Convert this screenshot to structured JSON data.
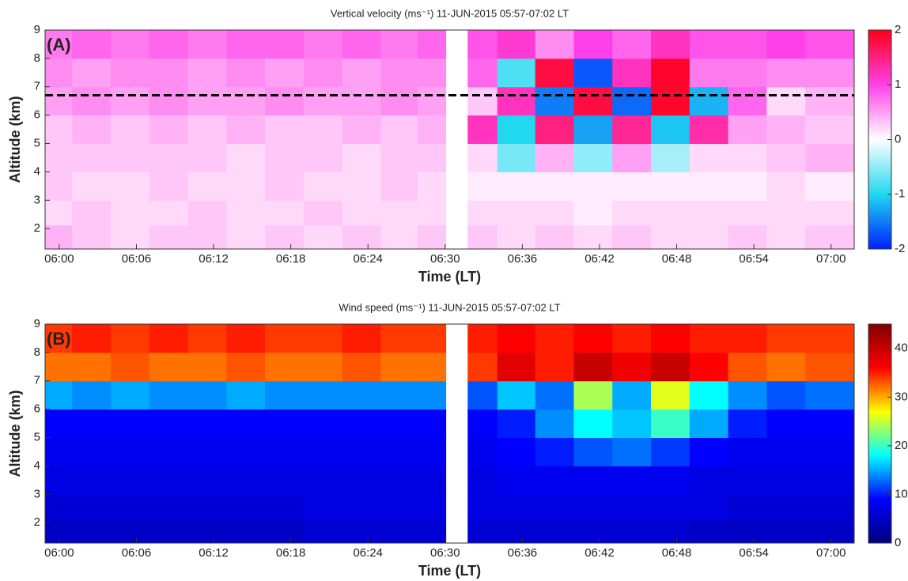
{
  "chart_data": [
    {
      "type": "heatmap",
      "title": "Vertical velocity (ms⁻¹) 11-JUN-2015  05:57-07:02 LT",
      "panel_label": "(A)",
      "xlabel": "Time (LT)",
      "ylabel": "Altitude (km)",
      "x": [
        359.5,
        362.5,
        365.5,
        368.5,
        371.5,
        374.5,
        377.5,
        380.5,
        383.5,
        386.5,
        389.2,
        390.9,
        392.6,
        395.5,
        398.5,
        401.5,
        404.5,
        407.5,
        410.5,
        413.5,
        416.5,
        419.5
      ],
      "y": [
        1.75,
        2.5,
        3.5,
        4.5,
        5.5,
        6.5,
        7.5,
        8.5
      ],
      "z": [
        [
          0.4,
          0.3,
          0.2,
          0.3,
          0.3,
          0.2,
          0.3,
          0.2,
          0.3,
          0.2,
          0.3,
          null,
          0.3,
          0.2,
          0.3,
          0.2,
          0.3,
          0.2,
          0.2,
          0.3,
          0.2,
          0.3
        ],
        [
          0.2,
          0.3,
          0.2,
          0.2,
          0.3,
          0.2,
          0.2,
          0.3,
          0.2,
          0.2,
          0.2,
          null,
          0.2,
          0.2,
          0.2,
          0.1,
          0.2,
          0.2,
          0.2,
          0.2,
          0.2,
          0.2
        ],
        [
          0.3,
          0.2,
          0.2,
          0.3,
          0.2,
          0.2,
          0.3,
          0.2,
          0.2,
          0.3,
          0.2,
          null,
          0.1,
          0.1,
          0.1,
          0.1,
          0.1,
          0.1,
          0.1,
          0.1,
          0.2,
          0.1
        ],
        [
          0.3,
          0.3,
          0.3,
          0.3,
          0.3,
          0.2,
          0.3,
          0.3,
          0.2,
          0.3,
          0.3,
          null,
          0.2,
          -0.6,
          0.4,
          -0.5,
          0.5,
          -0.4,
          0.2,
          0.2,
          0.3,
          0.4
        ],
        [
          0.3,
          0.4,
          0.3,
          0.4,
          0.3,
          0.4,
          0.3,
          0.3,
          0.4,
          0.3,
          0.4,
          null,
          1.2,
          -1.0,
          1.5,
          -1.3,
          1.4,
          -1.1,
          1.3,
          0.5,
          0.4,
          0.3
        ],
        [
          0.5,
          0.6,
          0.5,
          0.6,
          0.5,
          0.5,
          0.6,
          0.5,
          0.5,
          0.6,
          0.5,
          null,
          0.3,
          1.2,
          -1.5,
          1.8,
          -1.6,
          1.9,
          -1.2,
          0.8,
          0.2,
          0.4
        ],
        [
          0.6,
          0.5,
          0.6,
          0.6,
          0.5,
          0.6,
          0.5,
          0.6,
          0.5,
          0.6,
          0.6,
          null,
          0.8,
          -0.8,
          1.8,
          -1.7,
          1.2,
          1.9,
          0.7,
          0.7,
          0.6,
          0.6
        ],
        [
          0.7,
          0.8,
          0.7,
          0.8,
          0.7,
          0.8,
          0.8,
          0.7,
          0.8,
          0.7,
          0.8,
          null,
          0.9,
          1.1,
          0.6,
          1.0,
          0.8,
          1.2,
          0.9,
          0.9,
          1.0,
          0.9
        ]
      ],
      "xlim": [
        358.9,
        421.8
      ],
      "ylim": [
        1.28,
        9
      ],
      "xticks": [
        {
          "value": 360,
          "label": "06:00"
        },
        {
          "value": 366,
          "label": "06:06"
        },
        {
          "value": 372,
          "label": "06:12"
        },
        {
          "value": 378,
          "label": "06:18"
        },
        {
          "value": 384,
          "label": "06:24"
        },
        {
          "value": 390,
          "label": "06:30"
        },
        {
          "value": 396,
          "label": "06:36"
        },
        {
          "value": 402,
          "label": "06:42"
        },
        {
          "value": 408,
          "label": "06:48"
        },
        {
          "value": 414,
          "label": "06:54"
        },
        {
          "value": 420,
          "label": "07:00"
        }
      ],
      "yticks": [
        2,
        3,
        4,
        5,
        6,
        7,
        8,
        9
      ],
      "zlim": [
        -2,
        2
      ],
      "zticks": [
        -2,
        -1,
        0,
        1,
        2
      ],
      "colormap": [
        "#0020ff",
        "#20d8f0",
        "#ffffff",
        "#ff40e8",
        "#ff0018"
      ],
      "hline": 6.7
    },
    {
      "type": "heatmap",
      "title": "Wind speed (ms⁻¹) 11-JUN-2015 05:57-07:02 LT",
      "panel_label": "(B)",
      "xlabel": "Time (LT)",
      "ylabel": "Altitude (km)",
      "x": [
        359.5,
        362.5,
        365.5,
        368.5,
        371.5,
        374.5,
        377.5,
        380.5,
        383.5,
        386.5,
        389.2,
        390.9,
        392.6,
        395.5,
        398.5,
        401.5,
        404.5,
        407.5,
        410.5,
        413.5,
        416.5,
        419.5
      ],
      "y": [
        1.75,
        2.5,
        3.5,
        4.5,
        5.5,
        6.5,
        7.5,
        8.5
      ],
      "z": [
        [
          5,
          5,
          5,
          5,
          5,
          5,
          5,
          6,
          6,
          6,
          6,
          null,
          6,
          6,
          6,
          6,
          6,
          6,
          5,
          5,
          5,
          5
        ],
        [
          6,
          6,
          6,
          6,
          6,
          6,
          6,
          7,
          7,
          7,
          7,
          null,
          7,
          7,
          7,
          7,
          7,
          7,
          7,
          6,
          6,
          6
        ],
        [
          7,
          7,
          7,
          7,
          7,
          7,
          7,
          7,
          7,
          7,
          7,
          null,
          7,
          8,
          8,
          8,
          8,
          8,
          7,
          7,
          7,
          7
        ],
        [
          8,
          8,
          8,
          8,
          8,
          8,
          8,
          8,
          8,
          8,
          8,
          null,
          8,
          9,
          10,
          12,
          13,
          11,
          9,
          8,
          8,
          8
        ],
        [
          9,
          9,
          9,
          9,
          9,
          9,
          9,
          9,
          9,
          9,
          9,
          null,
          9,
          10,
          14,
          18,
          16,
          20,
          15,
          10,
          9,
          9
        ],
        [
          15,
          14,
          15,
          14,
          14,
          15,
          14,
          14,
          14,
          14,
          14,
          null,
          12,
          16,
          13,
          24,
          15,
          26,
          18,
          14,
          12,
          13
        ],
        [
          32,
          32,
          33,
          32,
          32,
          33,
          32,
          32,
          33,
          32,
          32,
          null,
          34,
          38,
          35,
          40,
          37,
          40,
          36,
          33,
          32,
          33
        ],
        [
          34,
          35,
          34,
          35,
          34,
          35,
          34,
          34,
          35,
          34,
          34,
          null,
          35,
          36,
          35,
          36,
          35,
          36,
          35,
          35,
          34,
          34
        ]
      ],
      "xlim": [
        358.9,
        421.8
      ],
      "ylim": [
        1.28,
        9
      ],
      "xticks": [
        {
          "value": 360,
          "label": "06:00"
        },
        {
          "value": 366,
          "label": "06:06"
        },
        {
          "value": 372,
          "label": "06:12"
        },
        {
          "value": 378,
          "label": "06:18"
        },
        {
          "value": 384,
          "label": "06:24"
        },
        {
          "value": 390,
          "label": "06:30"
        },
        {
          "value": 396,
          "label": "06:36"
        },
        {
          "value": 402,
          "label": "06:42"
        },
        {
          "value": 408,
          "label": "06:48"
        },
        {
          "value": 414,
          "label": "06:54"
        },
        {
          "value": 420,
          "label": "07:00"
        }
      ],
      "yticks": [
        2,
        3,
        4,
        5,
        6,
        7,
        8,
        9
      ],
      "zlim": [
        0,
        45
      ],
      "zticks": [
        0,
        10,
        20,
        30,
        40
      ],
      "colormap": [
        "#000080",
        "#0000ff",
        "#00ffff",
        "#ffff00",
        "#ff0000",
        "#800000"
      ]
    }
  ]
}
